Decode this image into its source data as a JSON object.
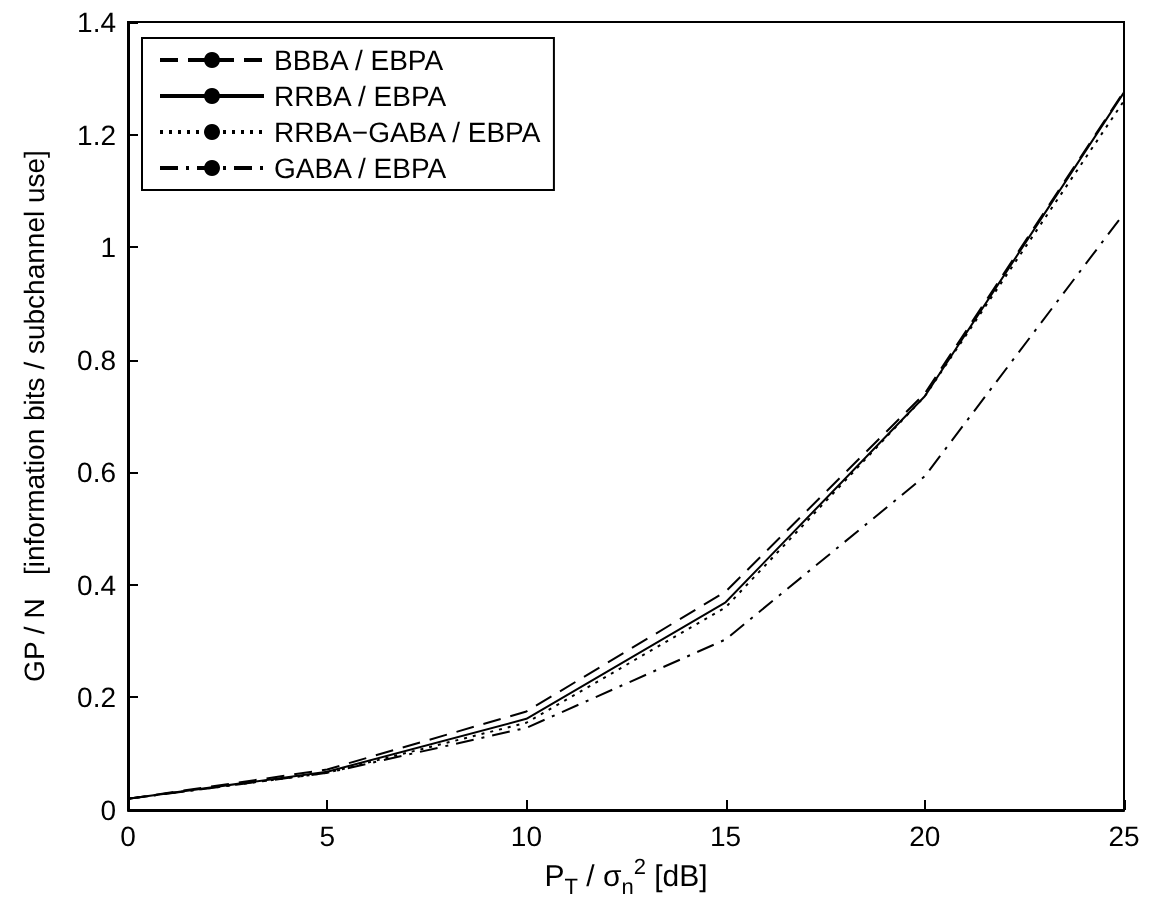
{
  "chart_data": {
    "type": "line",
    "xlabel": "P$_{T}$ / σ$_{n}$$^{2}$  [dB]",
    "ylabel": "GP / N   [information bits / subchannel use]",
    "x": [
      0,
      5,
      10,
      15,
      20,
      25
    ],
    "xlim": [
      0,
      25
    ],
    "xticks": [
      0,
      5,
      10,
      15,
      20,
      25
    ],
    "ylim": [
      0,
      1.4
    ],
    "yticks": [
      0,
      0.2,
      0.4,
      0.6,
      0.8,
      1,
      1.2,
      1.4
    ],
    "grid": false,
    "legend": "top left",
    "marker": "none",
    "series": [
      {
        "name": "BBBA / EBPA",
        "color": "#000000",
        "line_style": "dashed",
        "values": [
          0.02,
          0.072,
          0.175,
          0.388,
          0.74,
          1.277
        ]
      },
      {
        "name": "RRBA / EBPA",
        "color": "#000000",
        "line_style": "solid",
        "values": [
          0.02,
          0.068,
          0.162,
          0.369,
          0.735,
          1.275
        ]
      },
      {
        "name": "RRBA−GABA / EBPA",
        "color": "#000000",
        "line_style": "dotted",
        "values": [
          0.02,
          0.066,
          0.155,
          0.36,
          0.735,
          1.26
        ]
      },
      {
        "name": "GABA / EBPA",
        "color": "#000000",
        "line_style": "dashdot",
        "values": [
          0.02,
          0.066,
          0.146,
          0.303,
          0.593,
          1.06
        ]
      }
    ]
  }
}
